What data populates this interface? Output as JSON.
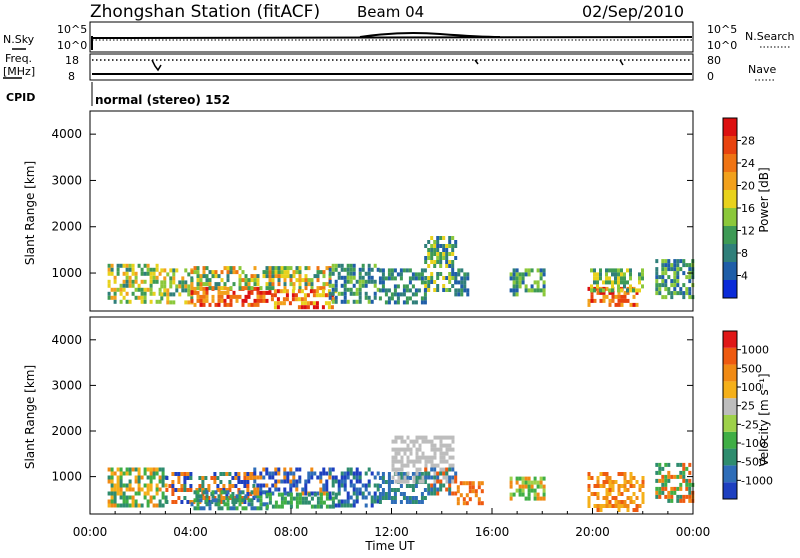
{
  "header": {
    "station": "Zhongshan Station (fitACF)",
    "beam": "Beam 04",
    "date": "02/Sep/2010"
  },
  "small_panels": {
    "nsky_label": "N.Sky",
    "nsky_ticks": [
      "10^5",
      "10^0"
    ],
    "nsearch_label": "N.Search",
    "nsearch_ticks": [
      "10^5",
      "10^0"
    ],
    "freq_label": "Freq.",
    "freq_unit": "[MHz]",
    "freq_ticks": [
      "18",
      "8"
    ],
    "nave_label": "Nave",
    "nave_ticks": [
      "80",
      "0"
    ],
    "cpid_label": "CPID",
    "cpid_value": "normal (stereo) 152"
  },
  "chart_data": [
    {
      "type": "heatmap",
      "name": "power",
      "ylabel": "Slant Range [km]",
      "ylim": [
        180,
        4500
      ],
      "yticks": [
        1000,
        2000,
        3000,
        4000
      ],
      "xlim": [
        0,
        24
      ],
      "colorbar": {
        "label": "Power [dB]",
        "ticks": [
          "4",
          "8",
          "12",
          "16",
          "20",
          "24",
          "28"
        ],
        "colors": [
          "#0b2bd8",
          "#1f5ea8",
          "#2f7f7a",
          "#3d9a55",
          "#8bc83a",
          "#e8d21c",
          "#f2a11c",
          "#ef7414",
          "#e8430f",
          "#dc1010"
        ]
      },
      "blocks": [
        {
          "t0": 0.7,
          "t1": 2.8,
          "r0": 400,
          "r1": 1200,
          "levels": [
            2,
            3,
            4,
            5,
            6
          ]
        },
        {
          "t0": 2.8,
          "t1": 4.0,
          "r0": 400,
          "r1": 1100,
          "levels": [
            2,
            3,
            4,
            5,
            6
          ]
        },
        {
          "t0": 4.0,
          "t1": 7.2,
          "r0": 300,
          "r1": 700,
          "levels": [
            6,
            7,
            8,
            9
          ]
        },
        {
          "t0": 4.0,
          "t1": 9.5,
          "r0": 650,
          "r1": 1150,
          "levels": [
            2,
            3,
            4,
            5,
            6,
            7
          ]
        },
        {
          "t0": 7.2,
          "t1": 9.8,
          "r0": 300,
          "r1": 650,
          "levels": [
            5,
            6,
            7,
            8,
            9
          ]
        },
        {
          "t0": 9.5,
          "t1": 11.5,
          "r0": 400,
          "r1": 1200,
          "levels": [
            1,
            2,
            3,
            4
          ]
        },
        {
          "t0": 11.5,
          "t1": 13.3,
          "r0": 400,
          "r1": 1100,
          "levels": [
            1,
            2,
            3
          ]
        },
        {
          "t0": 13.3,
          "t1": 14.5,
          "r0": 600,
          "r1": 1800,
          "levels": [
            1,
            2,
            3,
            4,
            5
          ]
        },
        {
          "t0": 14.5,
          "t1": 15.0,
          "r0": 500,
          "r1": 1100,
          "levels": [
            1,
            2,
            3
          ]
        },
        {
          "t0": 16.7,
          "t1": 18.1,
          "r0": 500,
          "r1": 1100,
          "levels": [
            1,
            2,
            3,
            4
          ]
        },
        {
          "t0": 19.8,
          "t1": 21.8,
          "r0": 300,
          "r1": 700,
          "levels": [
            6,
            7,
            8,
            9
          ]
        },
        {
          "t0": 19.9,
          "t1": 22.0,
          "r0": 600,
          "r1": 1100,
          "levels": [
            2,
            3,
            4,
            5
          ]
        },
        {
          "t0": 22.5,
          "t1": 24.0,
          "r0": 500,
          "r1": 1300,
          "levels": [
            1,
            2,
            3,
            4
          ]
        }
      ]
    },
    {
      "type": "heatmap",
      "name": "velocity",
      "ylabel": "Slant Range [km]",
      "ylim": [
        180,
        4500
      ],
      "yticks": [
        1000,
        2000,
        3000,
        4000
      ],
      "xlim": [
        0,
        24
      ],
      "xticks": [
        "00:00",
        "04:00",
        "08:00",
        "12:00",
        "16:00",
        "20:00",
        "00:00"
      ],
      "xlabel": "Time UT",
      "colorbar": {
        "label": "Velocity [m s⁻¹]",
        "ticks": [
          "1000",
          "500",
          "100",
          "25",
          "-25",
          "-100",
          "-500",
          "-1000"
        ],
        "colors": [
          "#1d3fc0",
          "#2e6db8",
          "#2e8c6e",
          "#3fae45",
          "#9ed14a",
          "#bdbdbd",
          "#f5b01a",
          "#f08a14",
          "#ee5a10",
          "#e01818"
        ]
      },
      "blocks": [
        {
          "t0": 0.7,
          "t1": 3.0,
          "r0": 400,
          "r1": 1200,
          "levels": [
            2,
            3,
            6,
            7
          ]
        },
        {
          "t0": 3.0,
          "t1": 6.5,
          "r0": 400,
          "r1": 1100,
          "levels": [
            0,
            2,
            7,
            8
          ]
        },
        {
          "t0": 4.0,
          "t1": 7.0,
          "r0": 300,
          "r1": 700,
          "levels": [
            1,
            2,
            3
          ]
        },
        {
          "t0": 6.5,
          "t1": 9.5,
          "r0": 600,
          "r1": 1200,
          "levels": [
            0,
            1,
            7
          ]
        },
        {
          "t0": 7.0,
          "t1": 9.8,
          "r0": 300,
          "r1": 650,
          "levels": [
            2,
            3
          ]
        },
        {
          "t0": 9.5,
          "t1": 11.5,
          "r0": 400,
          "r1": 1200,
          "levels": [
            0,
            1,
            2
          ]
        },
        {
          "t0": 11.5,
          "t1": 13.3,
          "r0": 400,
          "r1": 1100,
          "levels": [
            1,
            2
          ]
        },
        {
          "t0": 12.0,
          "t1": 14.5,
          "r0": 900,
          "r1": 1900,
          "levels": [
            5
          ]
        },
        {
          "t0": 13.3,
          "t1": 14.6,
          "r0": 600,
          "r1": 1200,
          "levels": [
            1,
            2,
            8
          ]
        },
        {
          "t0": 14.6,
          "t1": 15.6,
          "r0": 400,
          "r1": 900,
          "levels": [
            7,
            8
          ]
        },
        {
          "t0": 16.7,
          "t1": 18.1,
          "r0": 500,
          "r1": 1000,
          "levels": [
            3,
            4,
            7
          ]
        },
        {
          "t0": 19.8,
          "t1": 22.0,
          "r0": 300,
          "r1": 1100,
          "levels": [
            6,
            7,
            8
          ]
        },
        {
          "t0": 22.5,
          "t1": 24.0,
          "r0": 500,
          "r1": 1300,
          "levels": [
            2,
            3,
            7,
            8
          ]
        }
      ]
    }
  ]
}
